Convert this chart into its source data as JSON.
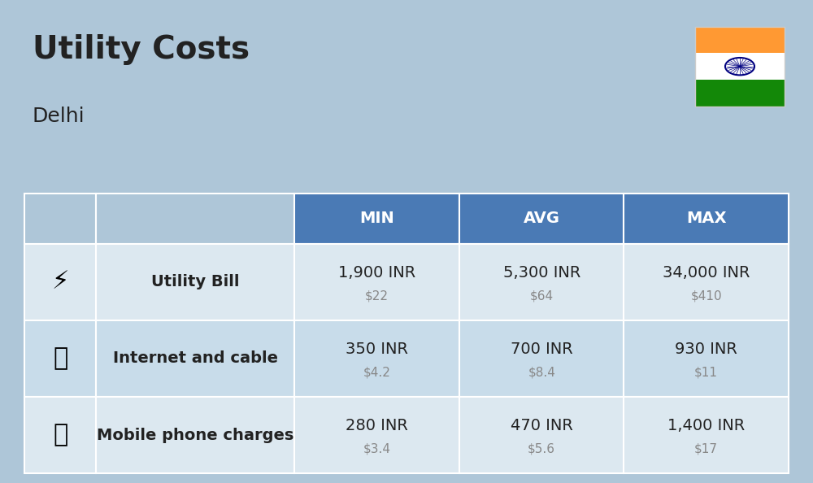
{
  "title": "Utility Costs",
  "subtitle": "Delhi",
  "background_color": "#aec6d8",
  "header_bg_color": "#4a7ab5",
  "header_text_color": "#ffffff",
  "row_colors": [
    "#dce8f0",
    "#c8dcea"
  ],
  "table_border_color": "#ffffff",
  "col_headers": [
    "",
    "",
    "MIN",
    "AVG",
    "MAX"
  ],
  "rows": [
    {
      "label": "Utility Bill",
      "min_inr": "1,900 INR",
      "min_usd": "$22",
      "avg_inr": "5,300 INR",
      "avg_usd": "$64",
      "max_inr": "34,000 INR",
      "max_usd": "$410"
    },
    {
      "label": "Internet and cable",
      "min_inr": "350 INR",
      "min_usd": "$4.2",
      "avg_inr": "700 INR",
      "avg_usd": "$8.4",
      "max_inr": "930 INR",
      "max_usd": "$11"
    },
    {
      "label": "Mobile phone charges",
      "min_inr": "280 INR",
      "min_usd": "$3.4",
      "avg_inr": "470 INR",
      "avg_usd": "$5.6",
      "max_inr": "1,400 INR",
      "max_usd": "$17"
    }
  ],
  "india_flag_colors": {
    "top": "#FF9933",
    "middle": "#FFFFFF",
    "bottom": "#138808",
    "chakra": "#000080"
  },
  "title_fontsize": 28,
  "subtitle_fontsize": 18,
  "header_fontsize": 14,
  "label_fontsize": 14,
  "value_fontsize": 14,
  "usd_fontsize": 11,
  "usd_color": "#888888",
  "text_color": "#222222"
}
